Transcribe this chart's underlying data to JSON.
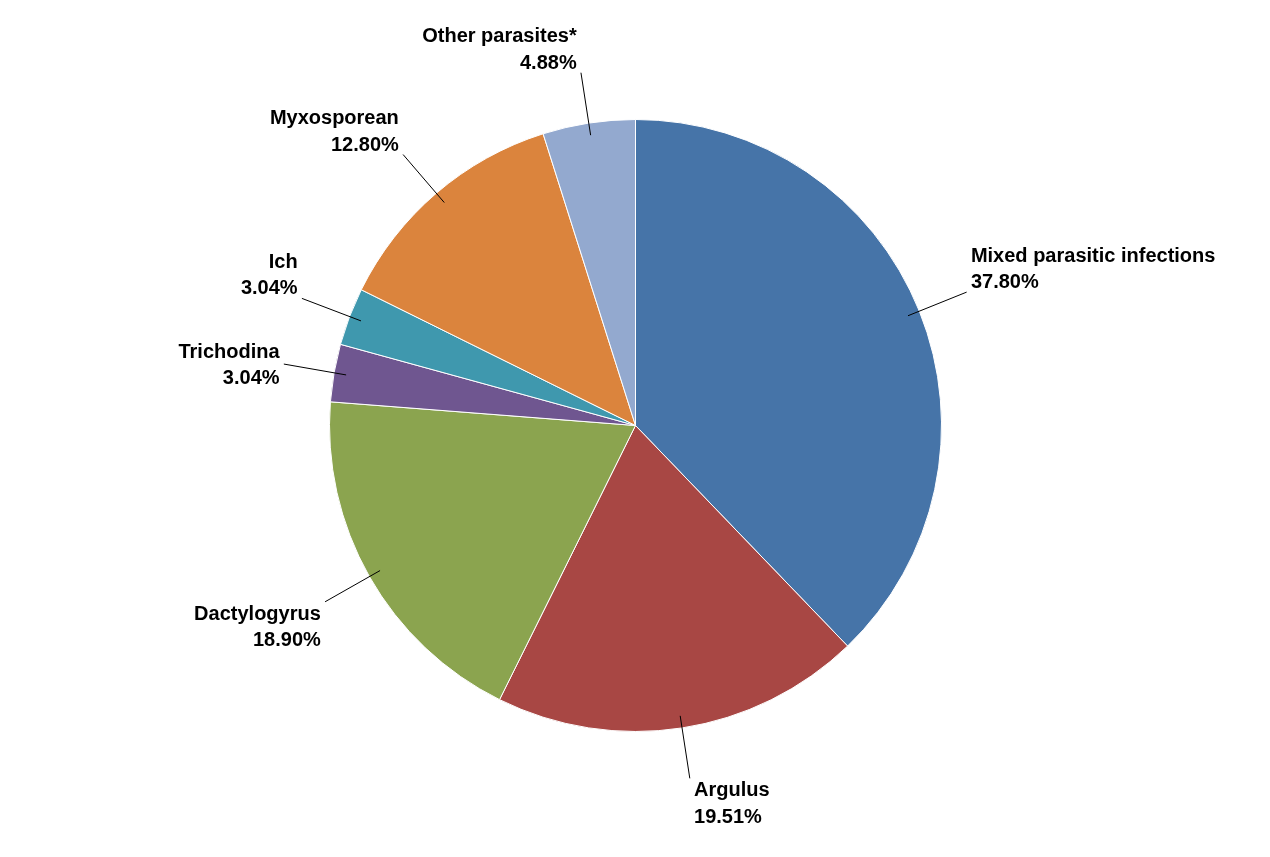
{
  "chart_data": {
    "type": "pie",
    "categories": [
      "Mixed parasitic infections",
      "Argulus",
      "Dactylogyrus",
      "Trichodina",
      "Ich",
      "Myxosporean",
      "Other parasites*"
    ],
    "values": [
      37.8,
      19.51,
      18.9,
      3.04,
      3.04,
      12.8,
      4.88
    ],
    "value_labels": [
      "37.80%",
      "19.51%",
      "18.90%",
      "3.04%",
      "3.04%",
      "12.80%",
      "4.88%"
    ],
    "colors": [
      "#4674a8",
      "#a84744",
      "#8ba44f",
      "#6f5690",
      "#3f98ae",
      "#db843d",
      "#93a9cf"
    ]
  }
}
